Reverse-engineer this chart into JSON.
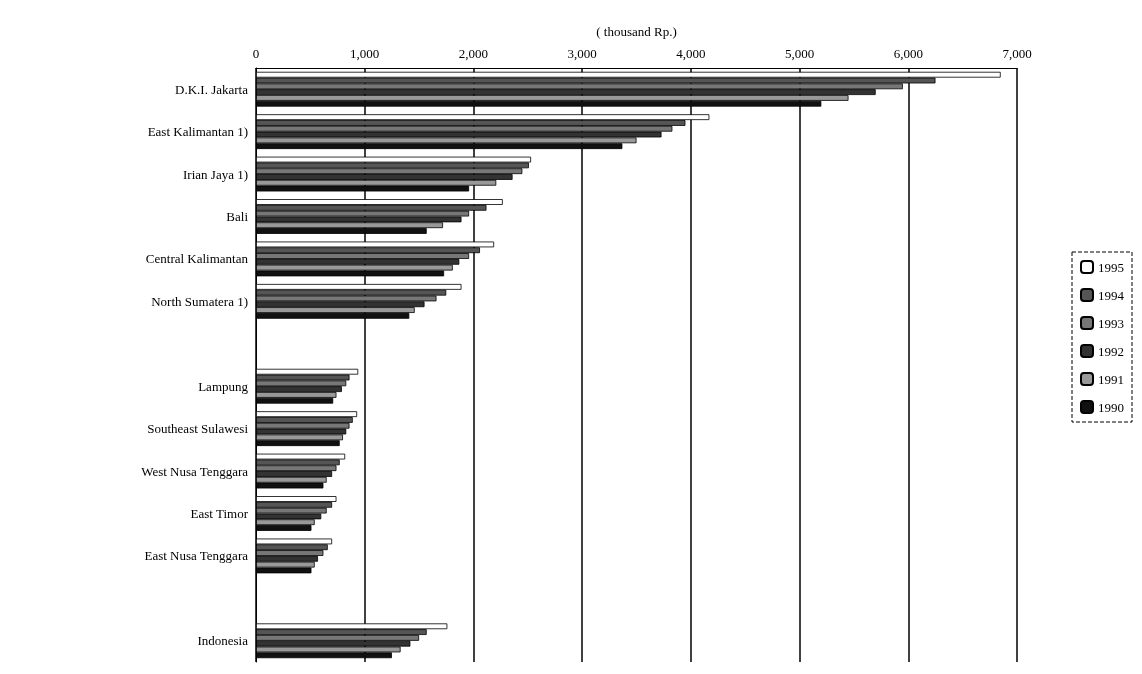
{
  "chart_data": {
    "type": "bar",
    "orientation": "horizontal",
    "xlabel": "( thousand Rp.)",
    "categories": [
      "D.K.I. Jakarta",
      "East Kalimantan 1)",
      "Irian Jaya 1)",
      "Bali",
      "Central Kalimantan",
      "North Sumatera 1)",
      null,
      "Lampung",
      "Southeast Sulawesi",
      "West Nusa Tenggara",
      "East Timor",
      "East Nusa Tenggara",
      null,
      "Indonesia"
    ],
    "xlim": [
      0,
      7000
    ],
    "xticks": [
      {
        "value": 0,
        "label": "0"
      },
      {
        "value": 1000,
        "label": "1,000"
      },
      {
        "value": 2000,
        "label": "2,000"
      },
      {
        "value": 3000,
        "label": "3,000"
      },
      {
        "value": 4000,
        "label": "4,000"
      },
      {
        "value": 5000,
        "label": "5,000"
      },
      {
        "value": 6000,
        "label": "6,000"
      },
      {
        "value": 7000,
        "label": "7,000"
      }
    ],
    "grid": "x",
    "legend": "right",
    "series": [
      {
        "name": "1995",
        "color": "#ffffff",
        "values": [
          6850,
          4170,
          2530,
          2270,
          2190,
          1890,
          null,
          940,
          930,
          820,
          740,
          700,
          null,
          1760
        ]
      },
      {
        "name": "1994",
        "color": "#555555",
        "values": [
          6250,
          3950,
          2510,
          2120,
          2060,
          1750,
          null,
          860,
          890,
          770,
          700,
          660,
          null,
          1570
        ]
      },
      {
        "name": "1993",
        "color": "#777777",
        "values": [
          5950,
          3830,
          2450,
          1960,
          1960,
          1660,
          null,
          830,
          860,
          740,
          650,
          620,
          null,
          1500
        ]
      },
      {
        "name": "1992",
        "color": "#333333",
        "values": [
          5700,
          3730,
          2360,
          1890,
          1870,
          1550,
          null,
          790,
          830,
          700,
          600,
          570,
          null,
          1420
        ]
      },
      {
        "name": "1991",
        "color": "#999999",
        "values": [
          5450,
          3500,
          2210,
          1720,
          1810,
          1460,
          null,
          740,
          800,
          650,
          540,
          540,
          null,
          1330
        ]
      },
      {
        "name": "1990",
        "color": "#111111",
        "values": [
          5200,
          3370,
          1960,
          1570,
          1730,
          1410,
          null,
          710,
          770,
          620,
          510,
          510,
          null,
          1250
        ]
      }
    ]
  }
}
